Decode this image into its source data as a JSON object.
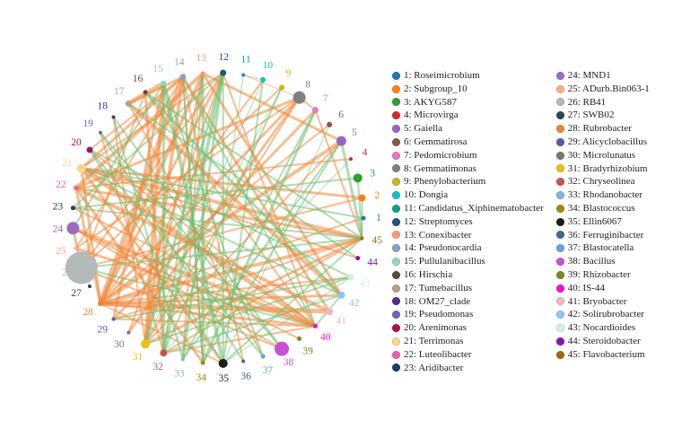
{
  "figure_title": "",
  "legend": {
    "separator": ": ",
    "column_split": 23
  },
  "chart_data": {
    "type": "network",
    "layout": "circular",
    "center": [
      243,
      243
    ],
    "radius": 162,
    "label_radius": 179,
    "angle_step_deg": 8,
    "direction": "counterclockwise-from-east",
    "background": "#ffffff",
    "edge_colors": {
      "o": "#f0863a",
      "g": "#6fbf73"
    },
    "edge_opacity": 0.55,
    "nodes": [
      {
        "id": 1,
        "name": "Roseimicrobium",
        "color": "#1f77b4",
        "r": 2.5
      },
      {
        "id": 2,
        "name": "Subgroup_10",
        "color": "#ff7f0e",
        "r": 4
      },
      {
        "id": 3,
        "name": "AKYG587",
        "color": "#2ca02c",
        "r": 5
      },
      {
        "id": 4,
        "name": "Microvirga",
        "color": "#d62728",
        "r": 2
      },
      {
        "id": 5,
        "name": "Gaiella",
        "color": "#9467bd",
        "r": 5.5
      },
      {
        "id": 6,
        "name": "Gemmatirosa",
        "color": "#8c564b",
        "r": 3
      },
      {
        "id": 7,
        "name": "Pedomicrobium",
        "color": "#e377c2",
        "r": 3.5
      },
      {
        "id": 8,
        "name": "Gemmatimonas",
        "color": "#7f7f7f",
        "r": 7
      },
      {
        "id": 9,
        "name": "Phenylobacterium",
        "color": "#bcbd22",
        "r": 3
      },
      {
        "id": 10,
        "name": "Dongia",
        "color": "#17becf",
        "r": 3
      },
      {
        "id": 11,
        "name": "Candidatus_Xiphinematobacter",
        "color": "#129c8a",
        "r": 2
      },
      {
        "id": 12,
        "name": "Streptomyces",
        "color": "#24527c",
        "r": 3.5
      },
      {
        "id": 13,
        "name": "Conexibacter",
        "color": "#fb9a74",
        "r": 2.5
      },
      {
        "id": 14,
        "name": "Pseudonocardia",
        "color": "#8c9fca",
        "r": 3.5
      },
      {
        "id": 15,
        "name": "Pullulanibacillus",
        "color": "#93d5bd",
        "r": 3
      },
      {
        "id": 16,
        "name": "Hirschia",
        "color": "#5c4a3a",
        "r": 2.5
      },
      {
        "id": 17,
        "name": "Tumebacillus",
        "color": "#b7a184",
        "r": 3.5
      },
      {
        "id": 18,
        "name": "OM27_clade",
        "color": "#552a8e",
        "r": 2
      },
      {
        "id": 19,
        "name": "Pseudomonas",
        "color": "#6a68bd",
        "r": 2
      },
      {
        "id": 20,
        "name": "Arenimonas",
        "color": "#a41152",
        "r": 3.5
      },
      {
        "id": 21,
        "name": "Terrimonas",
        "color": "#f8d88a",
        "r": 5
      },
      {
        "id": 22,
        "name": "Luteolibacter",
        "color": "#ee5fa7",
        "r": 2.5
      },
      {
        "id": 23,
        "name": "Aridibacter",
        "color": "#15406e",
        "r": 2.5
      },
      {
        "id": 24,
        "name": "MND1",
        "color": "#9e6cbb",
        "r": 7
      },
      {
        "id": 25,
        "name": "ADurb.Bin063-1",
        "color": "#fcab8e",
        "r": 2
      },
      {
        "id": 26,
        "name": "RB41",
        "color": "#b4baba",
        "r": 18
      },
      {
        "id": 27,
        "name": "SWB02",
        "color": "#32454e",
        "r": 2
      },
      {
        "id": 28,
        "name": "Rubrobacter",
        "color": "#dd8c35",
        "r": 3
      },
      {
        "id": 29,
        "name": "Alicyclobacillus",
        "color": "#5a5a9a",
        "r": 2
      },
      {
        "id": 30,
        "name": "Microlunatus",
        "color": "#80756a",
        "r": 2
      },
      {
        "id": 31,
        "name": "Bradyrhizobium",
        "color": "#e7c414",
        "r": 5
      },
      {
        "id": 32,
        "name": "Chryseolinea",
        "color": "#c9544e",
        "r": 4
      },
      {
        "id": 33,
        "name": "Rhodanobacter",
        "color": "#83b2e4",
        "r": 2
      },
      {
        "id": 34,
        "name": "Blastococcus",
        "color": "#9e8b10",
        "r": 2.5
      },
      {
        "id": 35,
        "name": "Ellin6067",
        "color": "#1c1c1c",
        "r": 5
      },
      {
        "id": 36,
        "name": "Ferruginibacter",
        "color": "#41688f",
        "r": 2
      },
      {
        "id": 37,
        "name": "Blastocatella",
        "color": "#64a1e6",
        "r": 2.5
      },
      {
        "id": 38,
        "name": "Bacillus",
        "color": "#c750d6",
        "r": 8
      },
      {
        "id": 39,
        "name": "Rhizobacter",
        "color": "#82822c",
        "r": 2.5
      },
      {
        "id": 40,
        "name": "IS-44",
        "color": "#f112c4",
        "r": 2.5
      },
      {
        "id": 41,
        "name": "Bryobacter",
        "color": "#f5b6ba",
        "r": 4
      },
      {
        "id": 42,
        "name": "Solirubrobacter",
        "color": "#8ec6f0",
        "r": 4
      },
      {
        "id": 43,
        "name": "Nocardioides",
        "color": "#cbf3ec",
        "r": 3.5
      },
      {
        "id": 44,
        "name": "Steroidobacter",
        "color": "#8912b8",
        "r": 2.5
      },
      {
        "id": 45,
        "name": "Flavobacterium",
        "color": "#9c6b10",
        "r": 2
      }
    ],
    "edges": [
      [
        15,
        17,
        "o",
        5
      ],
      [
        14,
        17,
        "o",
        3
      ],
      [
        14,
        28,
        "o",
        6
      ],
      [
        13,
        28,
        "o",
        4
      ],
      [
        14,
        31,
        "o",
        4
      ],
      [
        15,
        31,
        "o",
        4
      ],
      [
        13,
        22,
        "o",
        4
      ],
      [
        12,
        28,
        "o",
        3
      ],
      [
        14,
        21,
        "o",
        3
      ],
      [
        21,
        40,
        "o",
        5
      ],
      [
        21,
        45,
        "o",
        4
      ],
      [
        21,
        2,
        "o",
        3
      ],
      [
        22,
        41,
        "o",
        4
      ],
      [
        22,
        45,
        "o",
        3
      ],
      [
        22,
        28,
        "o",
        3
      ],
      [
        21,
        28,
        "o",
        3
      ],
      [
        20,
        40,
        "o",
        2
      ],
      [
        24,
        26,
        "o",
        3
      ],
      [
        24,
        40,
        "o",
        4
      ],
      [
        26,
        2,
        "o",
        2
      ],
      [
        26,
        9,
        "o",
        2
      ],
      [
        26,
        38,
        "o",
        2
      ],
      [
        26,
        27,
        "o",
        1
      ],
      [
        28,
        41,
        "o",
        5
      ],
      [
        28,
        45,
        "o",
        4
      ],
      [
        28,
        42,
        "o",
        3
      ],
      [
        28,
        5,
        "o",
        4
      ],
      [
        28,
        6,
        "o",
        2
      ],
      [
        28,
        1,
        "o",
        2
      ],
      [
        28,
        35,
        "o",
        2
      ],
      [
        28,
        10,
        "o",
        2
      ],
      [
        28,
        43,
        "o",
        2
      ],
      [
        28,
        40,
        "o",
        3
      ],
      [
        28,
        8,
        "o",
        3
      ],
      [
        8,
        22,
        "o",
        3
      ],
      [
        8,
        25,
        "o",
        2
      ],
      [
        8,
        30,
        "o",
        3
      ],
      [
        8,
        31,
        "o",
        2
      ],
      [
        8,
        7,
        "o",
        2
      ],
      [
        8,
        11,
        "o",
        1
      ],
      [
        7,
        45,
        "o",
        2
      ],
      [
        7,
        29,
        "o",
        3
      ],
      [
        5,
        31,
        "o",
        2
      ],
      [
        4,
        22,
        "o",
        2
      ],
      [
        45,
        29,
        "o",
        2
      ],
      [
        44,
        21,
        "o",
        2
      ],
      [
        41,
        14,
        "o",
        3
      ],
      [
        42,
        13,
        "o",
        3
      ],
      [
        40,
        16,
        "o",
        2
      ],
      [
        40,
        23,
        "o",
        2
      ],
      [
        40,
        25,
        "o",
        3
      ],
      [
        40,
        29,
        "o",
        2
      ],
      [
        40,
        32,
        "o",
        2
      ],
      [
        40,
        12,
        "o",
        2
      ],
      [
        39,
        24,
        "o",
        2
      ],
      [
        38,
        24,
        "o",
        2
      ],
      [
        37,
        17,
        "o",
        2
      ],
      [
        36,
        14,
        "o",
        2
      ],
      [
        35,
        21,
        "o",
        3
      ],
      [
        34,
        22,
        "o",
        3
      ],
      [
        34,
        14,
        "o",
        2
      ],
      [
        33,
        13,
        "o",
        2
      ],
      [
        32,
        45,
        "o",
        2
      ],
      [
        31,
        13,
        "o",
        3
      ],
      [
        31,
        18,
        "o",
        2
      ],
      [
        31,
        45,
        "o",
        3
      ],
      [
        30,
        12,
        "o",
        2
      ],
      [
        29,
        15,
        "o",
        3
      ],
      [
        25,
        14,
        "o",
        2
      ],
      [
        12,
        21,
        "o",
        2
      ],
      [
        10,
        11,
        "o",
        1
      ],
      [
        12,
        26,
        "o",
        2
      ],
      [
        14,
        20,
        "o",
        2
      ],
      [
        19,
        32,
        "o",
        2
      ],
      [
        17,
        42,
        "o",
        4
      ],
      [
        16,
        32,
        "o",
        3
      ],
      [
        16,
        26,
        "o",
        2
      ],
      [
        13,
        5,
        "o",
        3
      ],
      [
        12,
        33,
        "g",
        3
      ],
      [
        12,
        32,
        "g",
        4
      ],
      [
        13,
        34,
        "g",
        3
      ],
      [
        15,
        35,
        "g",
        4
      ],
      [
        15,
        32,
        "g",
        3
      ],
      [
        3,
        45,
        "g",
        2
      ],
      [
        16,
        42,
        "g",
        3
      ],
      [
        14,
        40,
        "g",
        2
      ],
      [
        12,
        31,
        "g",
        3
      ],
      [
        19,
        36,
        "g",
        2
      ],
      [
        20,
        37,
        "g",
        2
      ],
      [
        10,
        35,
        "g",
        2
      ],
      [
        5,
        33,
        "g",
        2
      ],
      [
        9,
        32,
        "g",
        2
      ],
      [
        45,
        26,
        "g",
        2
      ],
      [
        45,
        16,
        "g",
        2
      ],
      [
        42,
        21,
        "g",
        2
      ],
      [
        38,
        18,
        "g",
        2
      ],
      [
        44,
        17,
        "g",
        2
      ],
      [
        35,
        12,
        "g",
        2
      ],
      [
        34,
        5,
        "g",
        2
      ],
      [
        3,
        23,
        "g",
        2
      ],
      [
        1,
        21,
        "g",
        2
      ],
      [
        45,
        35,
        "g",
        2
      ],
      [
        40,
        42,
        "g",
        2
      ],
      [
        37,
        15,
        "g",
        2
      ],
      [
        43,
        20,
        "g",
        2
      ],
      [
        2,
        45,
        "g",
        2
      ],
      [
        11,
        34,
        "g",
        1
      ],
      [
        9,
        31,
        "g",
        1
      ],
      [
        7,
        33,
        "g",
        2
      ],
      [
        6,
        35,
        "g",
        1
      ],
      [
        4,
        32,
        "g",
        1
      ],
      [
        19,
        38,
        "g",
        2
      ],
      [
        18,
        33,
        "g",
        2
      ],
      [
        23,
        45,
        "g",
        2
      ],
      [
        26,
        40,
        "g",
        2
      ],
      [
        29,
        43,
        "g",
        2
      ],
      [
        31,
        43,
        "g",
        2
      ],
      [
        32,
        42,
        "g",
        2
      ],
      [
        35,
        43,
        "g",
        1
      ],
      [
        12,
        23,
        "g",
        2
      ],
      [
        14,
        34,
        "g",
        2
      ],
      [
        15,
        24,
        "g",
        2
      ],
      [
        10,
        31,
        "g",
        1
      ],
      [
        13,
        32,
        "g",
        2
      ],
      [
        20,
        35,
        "g",
        2
      ],
      [
        5,
        45,
        "g",
        3
      ],
      [
        7,
        34,
        "g",
        3
      ]
    ]
  }
}
